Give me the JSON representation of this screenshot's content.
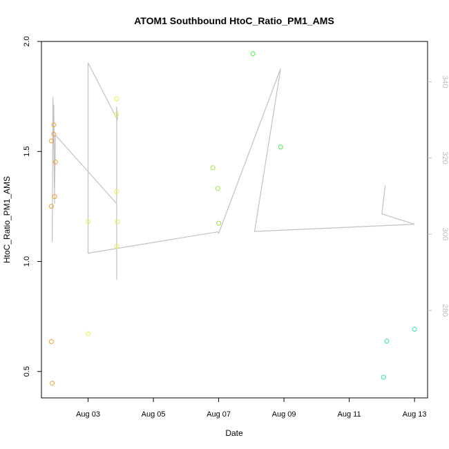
{
  "chart_data": {
    "type": "scatter",
    "title": "ATOM1 Southbound HtoC_Ratio_PM1_AMS",
    "xlabel": "Date",
    "ylabel": "HtoC_Ratio_PM1_AMS",
    "x_ticks": [
      "Aug 03",
      "Aug 05",
      "Aug 07",
      "Aug 09",
      "Aug 11",
      "Aug 13"
    ],
    "y_ticks": [
      "0.5",
      "1.0",
      "1.5",
      "2.0"
    ],
    "y2_ticks": [
      "280",
      "300",
      "320",
      "340"
    ],
    "xlim": [
      "2016-08-01T13:42",
      "2016-08-13T09:36"
    ],
    "ylim": [
      0.38,
      2.0
    ],
    "y2lim": [
      257,
      350.6
    ],
    "points": [
      {
        "x": "2016-08-01T21:00",
        "y": 0.636,
        "color": "#f5a030"
      },
      {
        "x": "2016-08-01T21:36",
        "y": 0.447,
        "color": "#f5a030"
      },
      {
        "x": "2016-08-01T21:00",
        "y": 1.251,
        "color": "#f5a030"
      },
      {
        "x": "2016-08-01T21:00",
        "y": 1.548,
        "color": "#f5a030"
      },
      {
        "x": "2016-08-01T22:48",
        "y": 1.621,
        "color": "#f5a030"
      },
      {
        "x": "2016-08-01T22:48",
        "y": 1.578,
        "color": "#f5a030"
      },
      {
        "x": "2016-08-01T23:24",
        "y": 1.295,
        "color": "#f5a030"
      },
      {
        "x": "2016-08-02T00:00",
        "y": 1.452,
        "color": "#f5a030"
      },
      {
        "x": "2016-08-03T00:00",
        "y": 1.181,
        "color": "#e8f044"
      },
      {
        "x": "2016-08-03T00:00",
        "y": 0.671,
        "color": "#e8f044"
      },
      {
        "x": "2016-08-03T21:00",
        "y": 1.739,
        "color": "#e8f044"
      },
      {
        "x": "2016-08-03T21:00",
        "y": 1.668,
        "color": "#e8f044"
      },
      {
        "x": "2016-08-03T21:00",
        "y": 1.317,
        "color": "#e8f044"
      },
      {
        "x": "2016-08-03T21:36",
        "y": 1.181,
        "color": "#e8f044"
      },
      {
        "x": "2016-08-03T21:00",
        "y": 1.069,
        "color": "#e8f044"
      },
      {
        "x": "2016-08-06T19:48",
        "y": 1.426,
        "color": "#9be83c"
      },
      {
        "x": "2016-08-06T23:24",
        "y": 1.332,
        "color": "#9be83c"
      },
      {
        "x": "2016-08-07T00:00",
        "y": 1.174,
        "color": "#9be83c"
      },
      {
        "x": "2016-08-08T01:12",
        "y": 1.944,
        "color": "#3ef04c"
      },
      {
        "x": "2016-08-08T21:36",
        "y": 1.52,
        "color": "#3ef04c"
      },
      {
        "x": "2016-08-12T01:12",
        "y": 0.474,
        "color": "#34dfa8"
      },
      {
        "x": "2016-08-12T03:36",
        "y": 0.638,
        "color": "#34dfa8"
      },
      {
        "x": "2016-08-13T00:00",
        "y": 0.692,
        "color": "#34dfa8"
      }
    ],
    "secondary_line": {
      "color": "#c2c2c2",
      "points": [
        {
          "x": "2016-08-01T21:36",
          "y": 298.0
        },
        {
          "x": "2016-08-01T22:12",
          "y": 336.0
        },
        {
          "x": "2016-08-01T23:24",
          "y": 308.0
        },
        {
          "x": "2016-08-01T22:48",
          "y": 334.0
        },
        {
          "x": "2016-08-01T23:24",
          "y": 312.0
        },
        {
          "x": "2016-08-02T00:00",
          "y": 326.0
        },
        {
          "x": "2016-08-03T21:00",
          "y": 308.0
        },
        {
          "x": "2016-08-03T21:00",
          "y": 288.0
        },
        {
          "x": "2016-08-03T21:00",
          "y": 333.5
        },
        {
          "x": "2016-08-03T21:36",
          "y": 330.0
        },
        {
          "x": "2016-08-03T00:00",
          "y": 345.0
        },
        {
          "x": "2016-08-03T00:00",
          "y": 295.0
        },
        {
          "x": "2016-08-06T23:24",
          "y": 300.6
        },
        {
          "x": "2016-08-07T00:00",
          "y": 300.2
        },
        {
          "x": "2016-08-08T21:36",
          "y": 343.5
        },
        {
          "x": "2016-08-08T02:24",
          "y": 300.7
        },
        {
          "x": "2016-08-13T00:00",
          "y": 302.6
        },
        {
          "x": "2016-08-12T00:00",
          "y": 305.3
        },
        {
          "x": "2016-08-12T02:24",
          "y": 312.8
        }
      ]
    }
  }
}
